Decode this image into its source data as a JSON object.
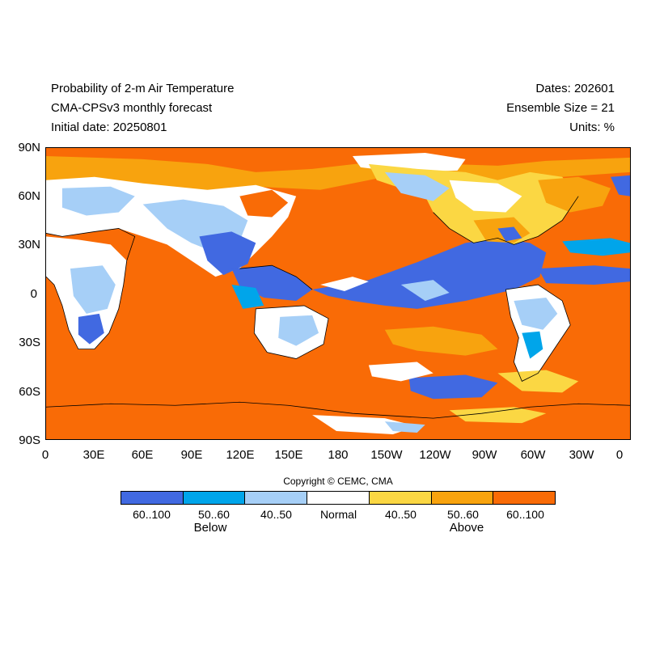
{
  "header": {
    "title": "Probability of 2-m Air Temperature",
    "model": "CMA-CPSv3 monthly forecast",
    "initial_date": "Initial date: 20250801",
    "dates": "Dates: 202601",
    "ensemble": "Ensemble Size = 21",
    "units": "Units: %"
  },
  "axes": {
    "lat_labels": [
      "90N",
      "60N",
      "30N",
      "0",
      "30S",
      "60S",
      "90S"
    ],
    "lon_labels": [
      "0",
      "30E",
      "60E",
      "90E",
      "120E",
      "150E",
      "180",
      "150W",
      "120W",
      "90W",
      "60W",
      "30W",
      "0"
    ]
  },
  "copyright": "Copyright © CEMC, CMA",
  "legend": {
    "items": [
      {
        "label": "60..100",
        "color": "#4169e1"
      },
      {
        "label": "50..60",
        "color": "#00a5ea"
      },
      {
        "label": "40..50",
        "color": "#a6cff7"
      },
      {
        "label": "Normal",
        "color": "#ffffff"
      },
      {
        "label": "40..50",
        "color": "#fbd743"
      },
      {
        "label": "50..60",
        "color": "#f8a30e"
      },
      {
        "label": "60..100",
        "color": "#f96b06"
      }
    ],
    "below_label": "Below",
    "above_label": "Above"
  }
}
